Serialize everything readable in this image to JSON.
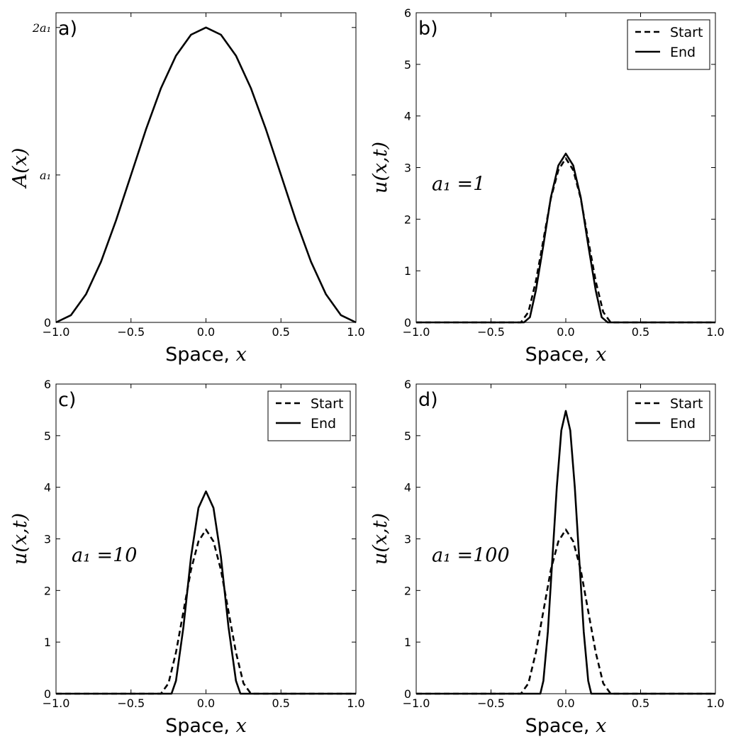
{
  "chart_data": [
    {
      "type": "line",
      "panel_label": "a)",
      "xlabel": "Space, ",
      "xlabel_var": "x",
      "ylabel": "A(x)",
      "xlim": [
        -1.0,
        1.0
      ],
      "ylim": [
        0,
        2.1
      ],
      "x_ticks": [
        -1.0,
        -0.5,
        0.0,
        0.5,
        1.0
      ],
      "x_tick_labels": [
        "−1.0",
        "−0.5",
        "0.0",
        "0.5",
        "1.0"
      ],
      "y_ticks": [
        0,
        1,
        2
      ],
      "y_tick_labels": [
        "0",
        "a₁",
        "2a₁"
      ],
      "annotation": "",
      "legend": [],
      "series": [
        {
          "name": "A",
          "style": "solid",
          "x": [
            -1.0,
            -0.9,
            -0.8,
            -0.7,
            -0.6,
            -0.5,
            -0.4,
            -0.3,
            -0.2,
            -0.1,
            0.0,
            0.1,
            0.2,
            0.3,
            0.4,
            0.5,
            0.6,
            0.7,
            0.8,
            0.9,
            1.0
          ],
          "y": [
            0,
            0.049,
            0.191,
            0.412,
            0.691,
            1.0,
            1.309,
            1.588,
            1.809,
            1.951,
            2.0,
            1.951,
            1.809,
            1.588,
            1.309,
            1.0,
            0.691,
            0.412,
            0.191,
            0.049,
            0
          ]
        }
      ]
    },
    {
      "type": "line",
      "panel_label": "b)",
      "xlabel": "Space, ",
      "xlabel_var": "x",
      "ylabel": "u(x,t)",
      "xlim": [
        -1.0,
        1.0
      ],
      "ylim": [
        0,
        6
      ],
      "x_ticks": [
        -1.0,
        -0.5,
        0.0,
        0.5,
        1.0
      ],
      "x_tick_labels": [
        "−1.0",
        "−0.5",
        "0.0",
        "0.5",
        "1.0"
      ],
      "y_ticks": [
        0,
        1,
        2,
        3,
        4,
        5,
        6
      ],
      "y_tick_labels": [
        "0",
        "1",
        "2",
        "3",
        "4",
        "5",
        "6"
      ],
      "annotation": "a₁ =1",
      "legend": [
        {
          "label": "Start",
          "style": "dashed"
        },
        {
          "label": "End",
          "style": "solid"
        }
      ],
      "series": [
        {
          "name": "Start",
          "style": "dashed",
          "x": [
            -1.0,
            -0.3,
            -0.25,
            -0.2,
            -0.15,
            -0.1,
            -0.05,
            0.0,
            0.05,
            0.1,
            0.15,
            0.2,
            0.25,
            0.3,
            1.0
          ],
          "y": [
            0,
            0,
            0.2,
            0.8,
            1.6,
            2.4,
            2.95,
            3.18,
            2.95,
            2.4,
            1.6,
            0.8,
            0.2,
            0,
            0
          ]
        },
        {
          "name": "End",
          "style": "solid",
          "x": [
            -1.0,
            -0.28,
            -0.24,
            -0.2,
            -0.15,
            -0.1,
            -0.05,
            0.0,
            0.05,
            0.1,
            0.15,
            0.2,
            0.24,
            0.28,
            1.0
          ],
          "y": [
            0,
            0,
            0.1,
            0.62,
            1.5,
            2.42,
            3.04,
            3.27,
            3.04,
            2.42,
            1.5,
            0.62,
            0.1,
            0,
            0
          ]
        }
      ]
    },
    {
      "type": "line",
      "panel_label": "c)",
      "xlabel": "Space, ",
      "xlabel_var": "x",
      "ylabel": "u(x,t)",
      "xlim": [
        -1.0,
        1.0
      ],
      "ylim": [
        0,
        6
      ],
      "x_ticks": [
        -1.0,
        -0.5,
        0.0,
        0.5,
        1.0
      ],
      "x_tick_labels": [
        "−1.0",
        "−0.5",
        "0.0",
        "0.5",
        "1.0"
      ],
      "y_ticks": [
        0,
        1,
        2,
        3,
        4,
        5,
        6
      ],
      "y_tick_labels": [
        "0",
        "1",
        "2",
        "3",
        "4",
        "5",
        "6"
      ],
      "annotation": "a₁ =10",
      "legend": [
        {
          "label": "Start",
          "style": "dashed"
        },
        {
          "label": "End",
          "style": "solid"
        }
      ],
      "series": [
        {
          "name": "Start",
          "style": "dashed",
          "x": [
            -1.0,
            -0.3,
            -0.25,
            -0.2,
            -0.15,
            -0.1,
            -0.05,
            0.0,
            0.05,
            0.1,
            0.15,
            0.2,
            0.25,
            0.3,
            1.0
          ],
          "y": [
            0,
            0,
            0.2,
            0.8,
            1.6,
            2.4,
            2.95,
            3.18,
            2.95,
            2.4,
            1.6,
            0.8,
            0.2,
            0,
            0
          ]
        },
        {
          "name": "End",
          "style": "solid",
          "x": [
            -1.0,
            -0.23,
            -0.2,
            -0.15,
            -0.1,
            -0.05,
            0.0,
            0.05,
            0.1,
            0.15,
            0.2,
            0.23,
            1.0
          ],
          "y": [
            0,
            0,
            0.25,
            1.3,
            2.65,
            3.6,
            3.92,
            3.6,
            2.65,
            1.3,
            0.25,
            0,
            0
          ]
        }
      ]
    },
    {
      "type": "line",
      "panel_label": "d)",
      "xlabel": "Space, ",
      "xlabel_var": "x",
      "ylabel": "u(x,t)",
      "xlim": [
        -1.0,
        1.0
      ],
      "ylim": [
        0,
        6
      ],
      "x_ticks": [
        -1.0,
        -0.5,
        0.0,
        0.5,
        1.0
      ],
      "x_tick_labels": [
        "−1.0",
        "−0.5",
        "0.0",
        "0.5",
        "1.0"
      ],
      "y_ticks": [
        0,
        1,
        2,
        3,
        4,
        5,
        6
      ],
      "y_tick_labels": [
        "0",
        "1",
        "2",
        "3",
        "4",
        "5",
        "6"
      ],
      "annotation": "a₁ =100",
      "legend": [
        {
          "label": "Start",
          "style": "dashed"
        },
        {
          "label": "End",
          "style": "solid"
        }
      ],
      "series": [
        {
          "name": "Start",
          "style": "dashed",
          "x": [
            -1.0,
            -0.3,
            -0.25,
            -0.2,
            -0.15,
            -0.1,
            -0.05,
            0.0,
            0.05,
            0.1,
            0.15,
            0.2,
            0.25,
            0.3,
            1.0
          ],
          "y": [
            0,
            0,
            0.2,
            0.8,
            1.6,
            2.4,
            2.95,
            3.18,
            2.95,
            2.4,
            1.6,
            0.8,
            0.2,
            0,
            0
          ]
        },
        {
          "name": "End",
          "style": "solid",
          "x": [
            -1.0,
            -0.17,
            -0.15,
            -0.12,
            -0.09,
            -0.06,
            -0.03,
            0.0,
            0.03,
            0.06,
            0.09,
            0.12,
            0.15,
            0.17,
            1.0
          ],
          "y": [
            0,
            0,
            0.25,
            1.2,
            2.6,
            4.0,
            5.1,
            5.48,
            5.1,
            4.0,
            2.6,
            1.2,
            0.25,
            0,
            0
          ]
        }
      ]
    }
  ]
}
